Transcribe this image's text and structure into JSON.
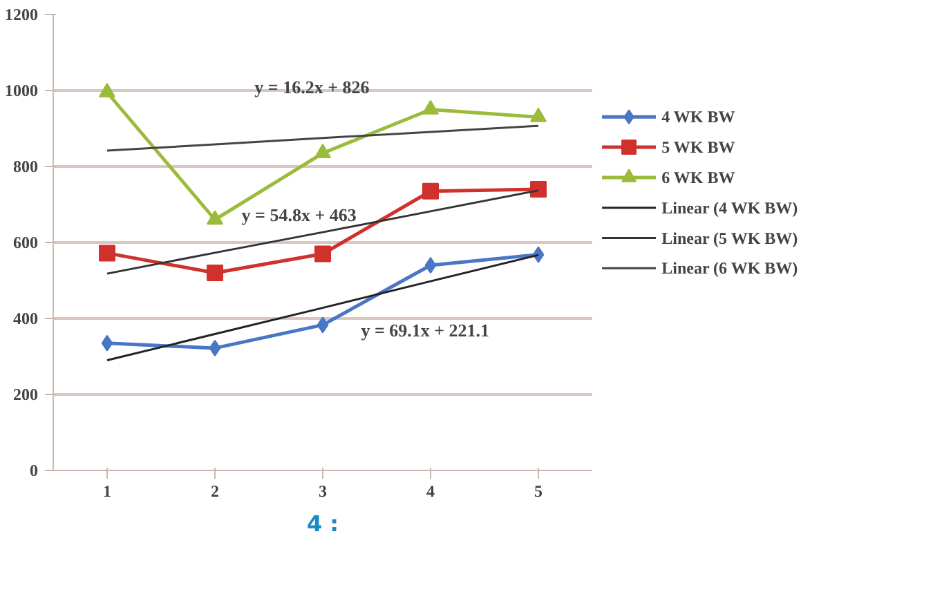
{
  "chart_data": {
    "type": "line",
    "categories": [
      "1",
      "2",
      "3",
      "4",
      "5"
    ],
    "ylim": [
      0,
      1200
    ],
    "yticks": [
      0,
      200,
      400,
      600,
      800,
      1000,
      1200
    ],
    "grid": "y",
    "legend": "right",
    "series": [
      {
        "name": "4 WK BW",
        "color": "#4a76c6",
        "marker": "diamond",
        "values": [
          335,
          322,
          383,
          540,
          568
        ]
      },
      {
        "name": "5 WK BW",
        "color": "#d0312d",
        "marker": "square",
        "values": [
          572,
          520,
          570,
          735,
          740
        ]
      },
      {
        "name": "6 WK BW",
        "color": "#9bbb3b",
        "marker": "triangle",
        "values": [
          995,
          660,
          835,
          950,
          930
        ]
      },
      {
        "name": "Linear (4 WK BW)",
        "color": "#222222",
        "marker": "none",
        "values": [
          290,
          359,
          428,
          498,
          567
        ]
      },
      {
        "name": "Linear (5 WK BW)",
        "color": "#333333",
        "marker": "none",
        "values": [
          518,
          573,
          627,
          682,
          737
        ]
      },
      {
        "name": "Linear (6 WK BW)",
        "color": "#444444",
        "marker": "none",
        "values": [
          842,
          858,
          875,
          891,
          907
        ]
      }
    ],
    "annotations": [
      "y = 16.2x + 826",
      "y = 54.8x + 463",
      "y = 69.1x + 221.1",
      "4 :"
    ]
  }
}
